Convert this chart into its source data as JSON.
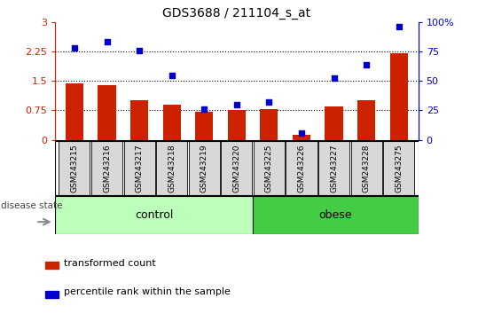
{
  "title": "GDS3688 / 211104_s_at",
  "samples": [
    "GSM243215",
    "GSM243216",
    "GSM243217",
    "GSM243218",
    "GSM243219",
    "GSM243220",
    "GSM243225",
    "GSM243226",
    "GSM243227",
    "GSM243228",
    "GSM243275"
  ],
  "transformed_count": [
    1.43,
    1.4,
    1.0,
    0.9,
    0.72,
    0.75,
    0.77,
    0.13,
    0.85,
    1.0,
    2.2
  ],
  "percentile_rank": [
    78,
    83,
    76,
    55,
    26,
    30,
    32,
    6,
    52,
    64,
    96
  ],
  "bar_color": "#cc2200",
  "dot_color": "#0000cc",
  "left_ylim": [
    0,
    3
  ],
  "right_ylim": [
    0,
    100
  ],
  "left_yticks": [
    0,
    0.75,
    1.5,
    2.25,
    3
  ],
  "right_yticks": [
    0,
    25,
    50,
    75,
    100
  ],
  "left_yticklabels": [
    "0",
    "0.75",
    "1.5",
    "2.25",
    "3"
  ],
  "right_yticklabels": [
    "0",
    "25",
    "50",
    "75",
    "100%"
  ],
  "hlines": [
    0.75,
    1.5,
    2.25
  ],
  "n_control": 6,
  "n_obese": 5,
  "control_color": "#bbffbb",
  "obese_color": "#44cc44",
  "group_label_control": "control",
  "group_label_obese": "obese",
  "legend_bar_label": "transformed count",
  "legend_dot_label": "percentile rank within the sample",
  "disease_state_label": "disease state"
}
